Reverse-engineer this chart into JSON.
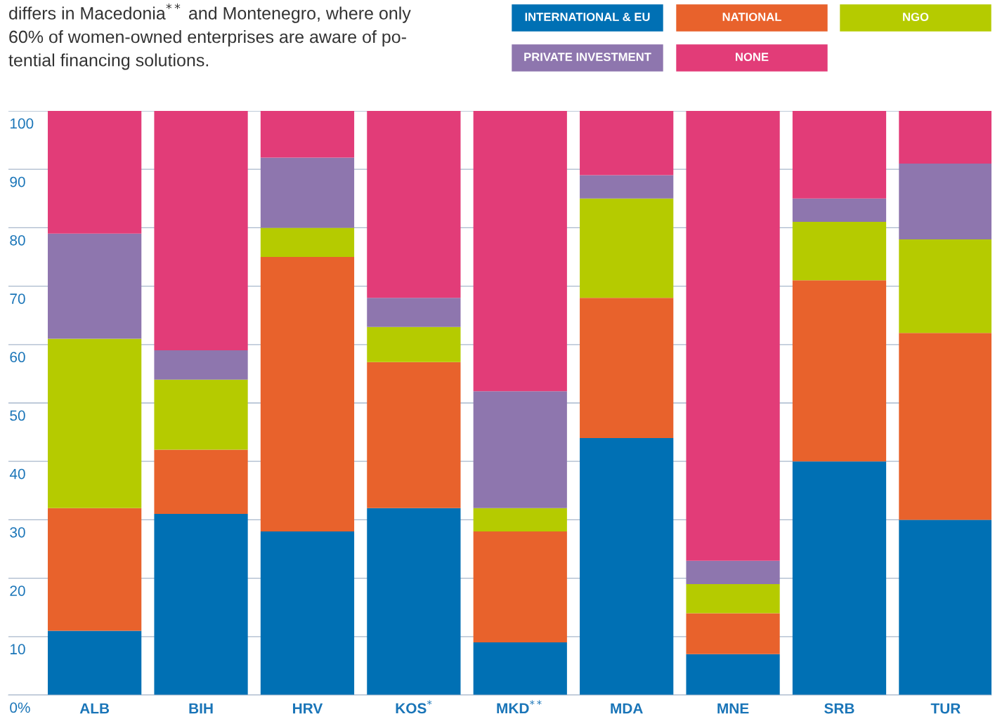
{
  "chart_data": {
    "type": "bar",
    "stacked": true,
    "annotations": [
      "differs in Macedonia$^{**}$ and Montenegro, where only\n60% of women-owned enterprises are aware of po-\ntential financing solutions."
    ],
    "categories": [
      "ALB",
      "BIH",
      "HRV",
      "KOS$^{*}$",
      "MKD$^{**}$",
      "MDA",
      "MNE",
      "SRB",
      "TUR"
    ],
    "series": [
      {
        "name": "INTERNATIONAL & EU",
        "color": "#0070b4",
        "values": [
          11,
          31,
          28,
          32,
          9,
          44,
          7,
          40,
          30
        ]
      },
      {
        "name": "NATIONAL",
        "color": "#e8622c",
        "values": [
          21,
          11,
          47,
          25,
          19,
          24,
          7,
          31,
          32
        ]
      },
      {
        "name": "NGO",
        "color": "#b5cb00",
        "values": [
          29,
          12,
          5,
          6,
          4,
          17,
          5,
          10,
          16
        ]
      },
      {
        "name": "PRIVATE INVESTMENT",
        "color": "#8e76ae",
        "values": [
          18,
          5,
          12,
          5,
          20,
          4,
          4,
          4,
          13
        ]
      },
      {
        "name": "NONE",
        "color": "#e23c78",
        "values": [
          21,
          41,
          8,
          32,
          48,
          11,
          77,
          15,
          9
        ]
      }
    ],
    "ylim": [
      0,
      100
    ],
    "yticks": [
      {
        "value": 0,
        "label": "0%"
      },
      10,
      20,
      30,
      40,
      50,
      60,
      70,
      80,
      90,
      100
    ],
    "grid": "y",
    "legend": "top right"
  }
}
